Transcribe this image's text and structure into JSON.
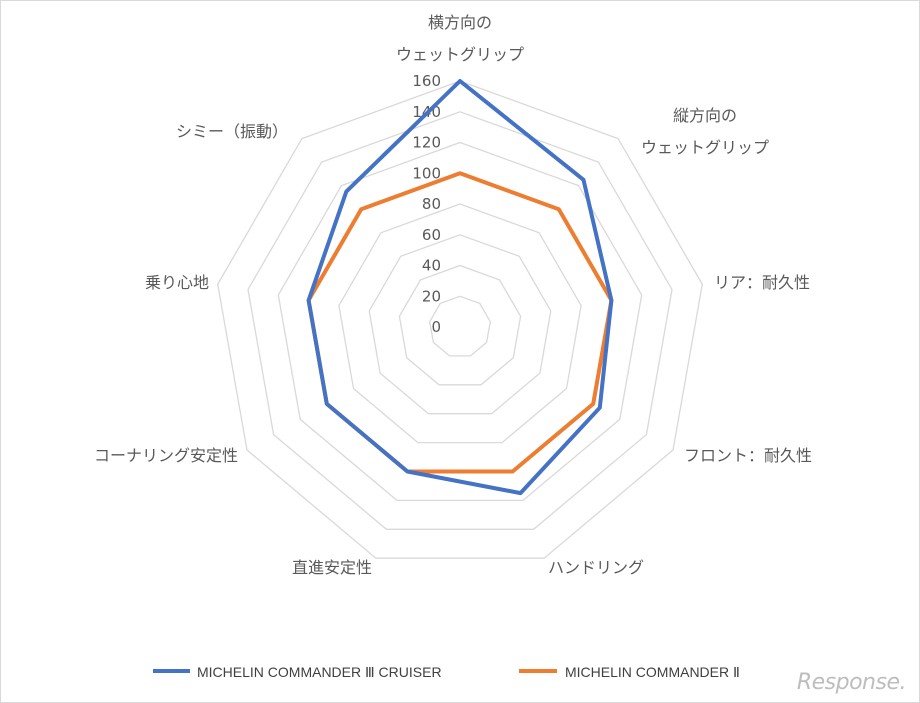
{
  "chart_data": {
    "type": "radar",
    "categories": [
      [
        "横方向の",
        "ウェットグリップ"
      ],
      [
        "縦方向の",
        "ウェットグリップ"
      ],
      [
        "リア：耐久性"
      ],
      [
        "フロント：耐久性"
      ],
      [
        "ハンドリング"
      ],
      [
        "直進安定性"
      ],
      [
        "コーナリング安定性"
      ],
      [
        "乗り心地"
      ],
      [
        "シミー（振動）"
      ]
    ],
    "rlim": [
      0,
      160
    ],
    "ticks": [
      0,
      20,
      40,
      60,
      80,
      100,
      120,
      140,
      160
    ],
    "series": [
      {
        "name": "MICHELIN COMMANDER Ⅲ CRUISER",
        "color": "#4472c4",
        "values": [
          160,
          125,
          100,
          105,
          115,
          100,
          100,
          100,
          115
        ]
      },
      {
        "name": "MICHELIN COMMANDER Ⅱ",
        "color": "#ed7d31",
        "values": [
          100,
          100,
          100,
          100,
          100,
          100,
          100,
          100,
          100
        ]
      }
    ],
    "grid": true,
    "legend_position": "bottom"
  },
  "watermark": "Response."
}
